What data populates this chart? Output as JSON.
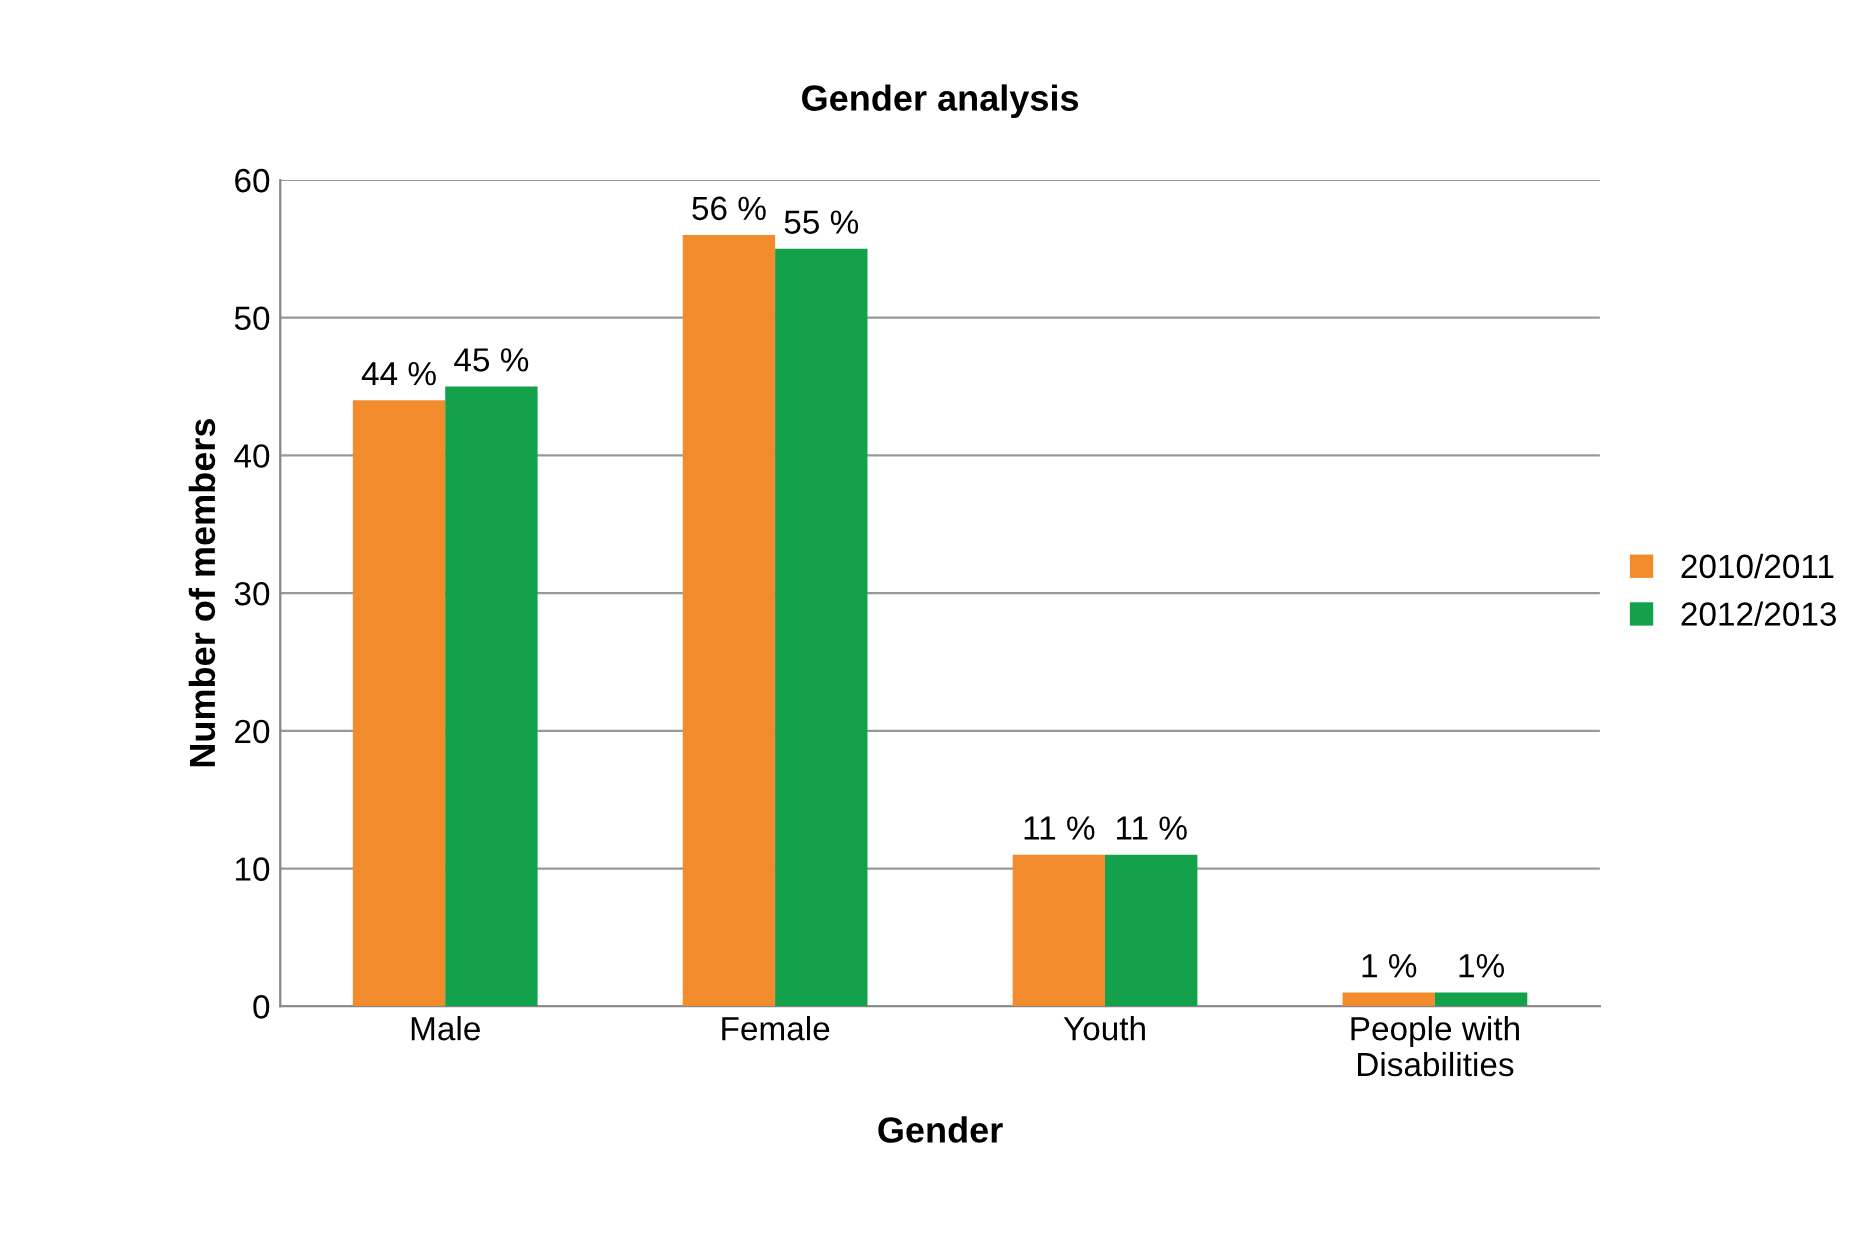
{
  "chart_data": {
    "type": "bar",
    "title": "Gender analysis",
    "xlabel": "Gender",
    "ylabel": "Number of members",
    "categories": [
      "Male",
      "Female",
      "Youth",
      "People with\nDisabilities"
    ],
    "series": [
      {
        "name": "2010/2011",
        "color": "#f28b2c",
        "values": [
          44,
          56,
          11,
          1
        ],
        "value_labels": [
          "44 %",
          "56 %",
          "11 %",
          "1 %"
        ]
      },
      {
        "name": "2012/2013",
        "color": "#13a14b",
        "values": [
          45,
          55,
          11,
          1
        ],
        "value_labels": [
          "45 %",
          "55 %",
          "11 %",
          "1%"
        ]
      }
    ],
    "ylim": [
      0,
      60
    ],
    "yticks": [
      0,
      10,
      20,
      30,
      40,
      50,
      60
    ],
    "grid": "y",
    "legend": "right"
  }
}
